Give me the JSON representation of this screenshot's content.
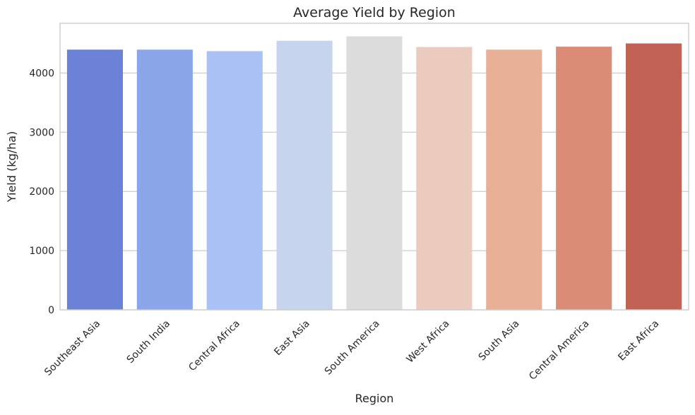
{
  "chart_data": {
    "type": "bar",
    "title": "Average Yield by Region",
    "xlabel": "Region",
    "ylabel": "Yield (kg/ha)",
    "categories": [
      "Southeast Asia",
      "South India",
      "Central Africa",
      "East Asia",
      "South America",
      "West Africa",
      "South Asia",
      "Central America",
      "East Africa"
    ],
    "values": [
      4395,
      4395,
      4370,
      4545,
      4620,
      4440,
      4395,
      4445,
      4500
    ],
    "colors": [
      "#6b81d5",
      "#8aa6e9",
      "#a9c1f4",
      "#c6d4ee",
      "#dcdcdc",
      "#eacbbd",
      "#e9b098",
      "#da8c76",
      "#c26254"
    ],
    "yticks": [
      0,
      1000,
      2000,
      3000,
      4000
    ],
    "ylim": [
      0,
      4840
    ],
    "grid": "horizontal",
    "legend": "none"
  }
}
